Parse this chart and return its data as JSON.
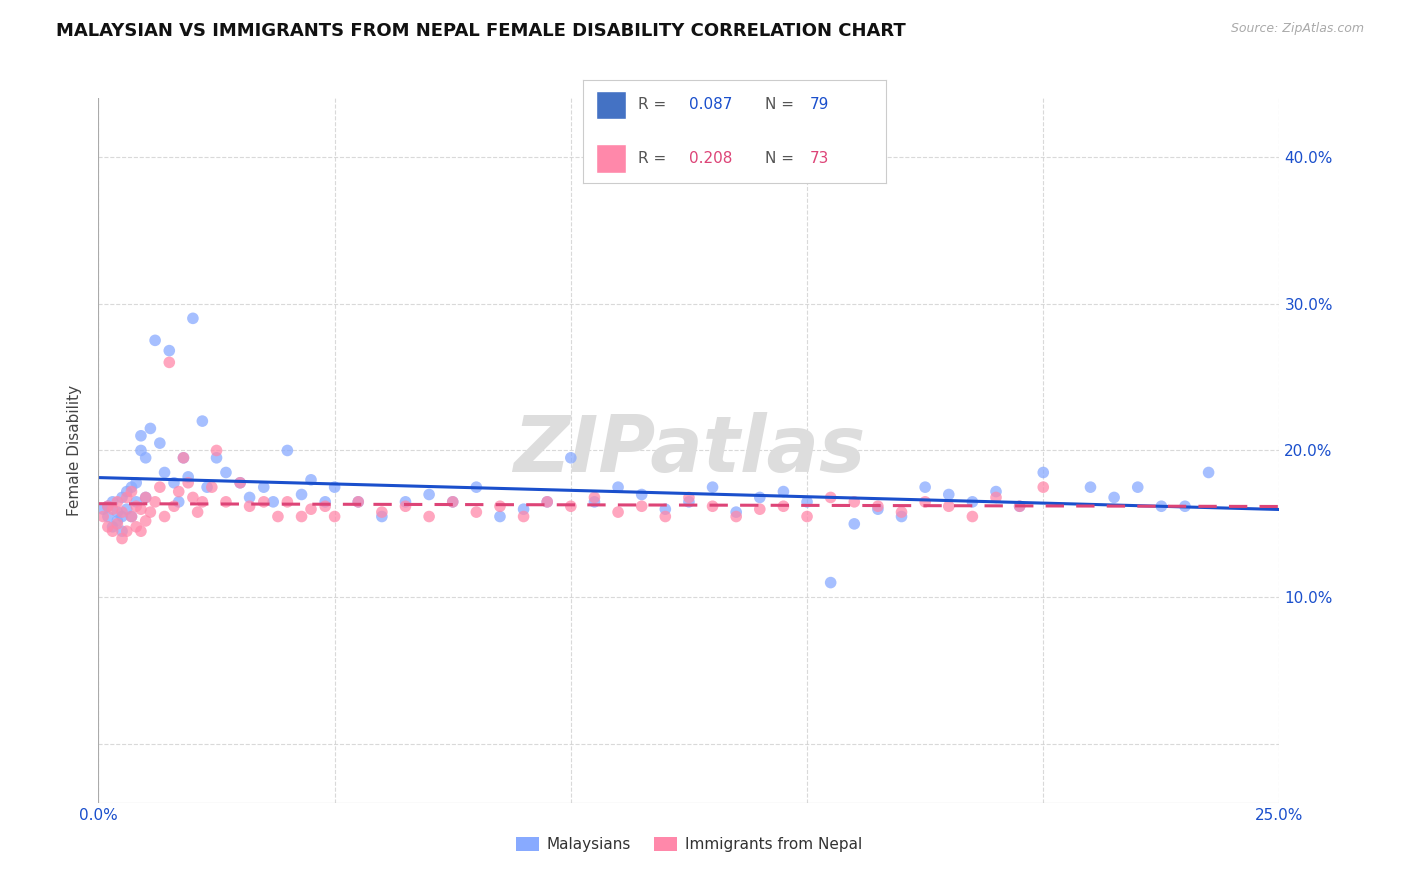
{
  "title": "MALAYSIAN VS IMMIGRANTS FROM NEPAL FEMALE DISABILITY CORRELATION CHART",
  "source": "Source: ZipAtlas.com",
  "ylabel_label": "Female Disability",
  "xlim": [
    0.0,
    0.25
  ],
  "ylim": [
    -0.04,
    0.44
  ],
  "xticks": [
    0.0,
    0.05,
    0.1,
    0.15,
    0.2,
    0.25
  ],
  "xtick_labels": [
    "0.0%",
    "",
    "",
    "",
    "",
    "25.0%"
  ],
  "yticks": [
    0.0,
    0.1,
    0.2,
    0.3,
    0.4
  ],
  "ytick_labels_right": [
    "",
    "10.0%",
    "20.0%",
    "30.0%",
    "40.0%"
  ],
  "background_color": "#ffffff",
  "grid_color": "#d0d0d0",
  "blue_scatter_color": "#88aaff",
  "pink_scatter_color": "#ff88aa",
  "line_blue": "#1a4fcc",
  "line_pink": "#dd4477",
  "watermark": "ZIPatlas",
  "watermark_color": "#dddddd",
  "title_fontsize": 13,
  "axis_label_fontsize": 11,
  "tick_fontsize": 11,
  "legend_color_blue": "#4472c4",
  "legend_color_pink": "#ff88aa",
  "malaysians_x": [
    0.001,
    0.002,
    0.002,
    0.003,
    0.003,
    0.004,
    0.004,
    0.005,
    0.005,
    0.005,
    0.006,
    0.006,
    0.007,
    0.007,
    0.008,
    0.008,
    0.009,
    0.009,
    0.01,
    0.01,
    0.011,
    0.012,
    0.013,
    0.014,
    0.015,
    0.016,
    0.017,
    0.018,
    0.019,
    0.02,
    0.022,
    0.023,
    0.025,
    0.027,
    0.03,
    0.032,
    0.035,
    0.037,
    0.04,
    0.043,
    0.045,
    0.048,
    0.05,
    0.055,
    0.06,
    0.065,
    0.07,
    0.075,
    0.08,
    0.085,
    0.09,
    0.095,
    0.1,
    0.105,
    0.11,
    0.115,
    0.12,
    0.125,
    0.13,
    0.135,
    0.14,
    0.145,
    0.15,
    0.155,
    0.16,
    0.165,
    0.17,
    0.175,
    0.18,
    0.185,
    0.19,
    0.195,
    0.2,
    0.21,
    0.215,
    0.22,
    0.225,
    0.23,
    0.235
  ],
  "malaysians_y": [
    0.16,
    0.155,
    0.162,
    0.148,
    0.165,
    0.152,
    0.158,
    0.145,
    0.155,
    0.168,
    0.172,
    0.16,
    0.175,
    0.155,
    0.165,
    0.178,
    0.2,
    0.21,
    0.195,
    0.168,
    0.215,
    0.275,
    0.205,
    0.185,
    0.268,
    0.178,
    0.165,
    0.195,
    0.182,
    0.29,
    0.22,
    0.175,
    0.195,
    0.185,
    0.178,
    0.168,
    0.175,
    0.165,
    0.2,
    0.17,
    0.18,
    0.165,
    0.175,
    0.165,
    0.155,
    0.165,
    0.17,
    0.165,
    0.175,
    0.155,
    0.16,
    0.165,
    0.195,
    0.165,
    0.175,
    0.17,
    0.16,
    0.165,
    0.175,
    0.158,
    0.168,
    0.172,
    0.165,
    0.11,
    0.15,
    0.16,
    0.155,
    0.175,
    0.17,
    0.165,
    0.172,
    0.162,
    0.185,
    0.175,
    0.168,
    0.175,
    0.162,
    0.162,
    0.185
  ],
  "nepal_x": [
    0.001,
    0.002,
    0.002,
    0.003,
    0.003,
    0.004,
    0.004,
    0.005,
    0.005,
    0.006,
    0.006,
    0.007,
    0.007,
    0.008,
    0.008,
    0.009,
    0.009,
    0.01,
    0.01,
    0.011,
    0.012,
    0.013,
    0.014,
    0.015,
    0.016,
    0.017,
    0.018,
    0.019,
    0.02,
    0.021,
    0.022,
    0.024,
    0.025,
    0.027,
    0.03,
    0.032,
    0.035,
    0.038,
    0.04,
    0.043,
    0.045,
    0.048,
    0.05,
    0.055,
    0.06,
    0.065,
    0.07,
    0.075,
    0.08,
    0.085,
    0.09,
    0.095,
    0.1,
    0.105,
    0.11,
    0.115,
    0.12,
    0.125,
    0.13,
    0.135,
    0.14,
    0.145,
    0.15,
    0.155,
    0.16,
    0.165,
    0.17,
    0.175,
    0.18,
    0.185,
    0.19,
    0.195,
    0.2
  ],
  "nepal_y": [
    0.155,
    0.148,
    0.162,
    0.145,
    0.16,
    0.15,
    0.165,
    0.14,
    0.158,
    0.145,
    0.168,
    0.155,
    0.172,
    0.148,
    0.162,
    0.145,
    0.16,
    0.152,
    0.168,
    0.158,
    0.165,
    0.175,
    0.155,
    0.26,
    0.162,
    0.172,
    0.195,
    0.178,
    0.168,
    0.158,
    0.165,
    0.175,
    0.2,
    0.165,
    0.178,
    0.162,
    0.165,
    0.155,
    0.165,
    0.155,
    0.16,
    0.162,
    0.155,
    0.165,
    0.158,
    0.162,
    0.155,
    0.165,
    0.158,
    0.162,
    0.155,
    0.165,
    0.162,
    0.168,
    0.158,
    0.162,
    0.155,
    0.168,
    0.162,
    0.155,
    0.16,
    0.162,
    0.155,
    0.168,
    0.165,
    0.162,
    0.158,
    0.165,
    0.162,
    0.155,
    0.168,
    0.162,
    0.175
  ]
}
